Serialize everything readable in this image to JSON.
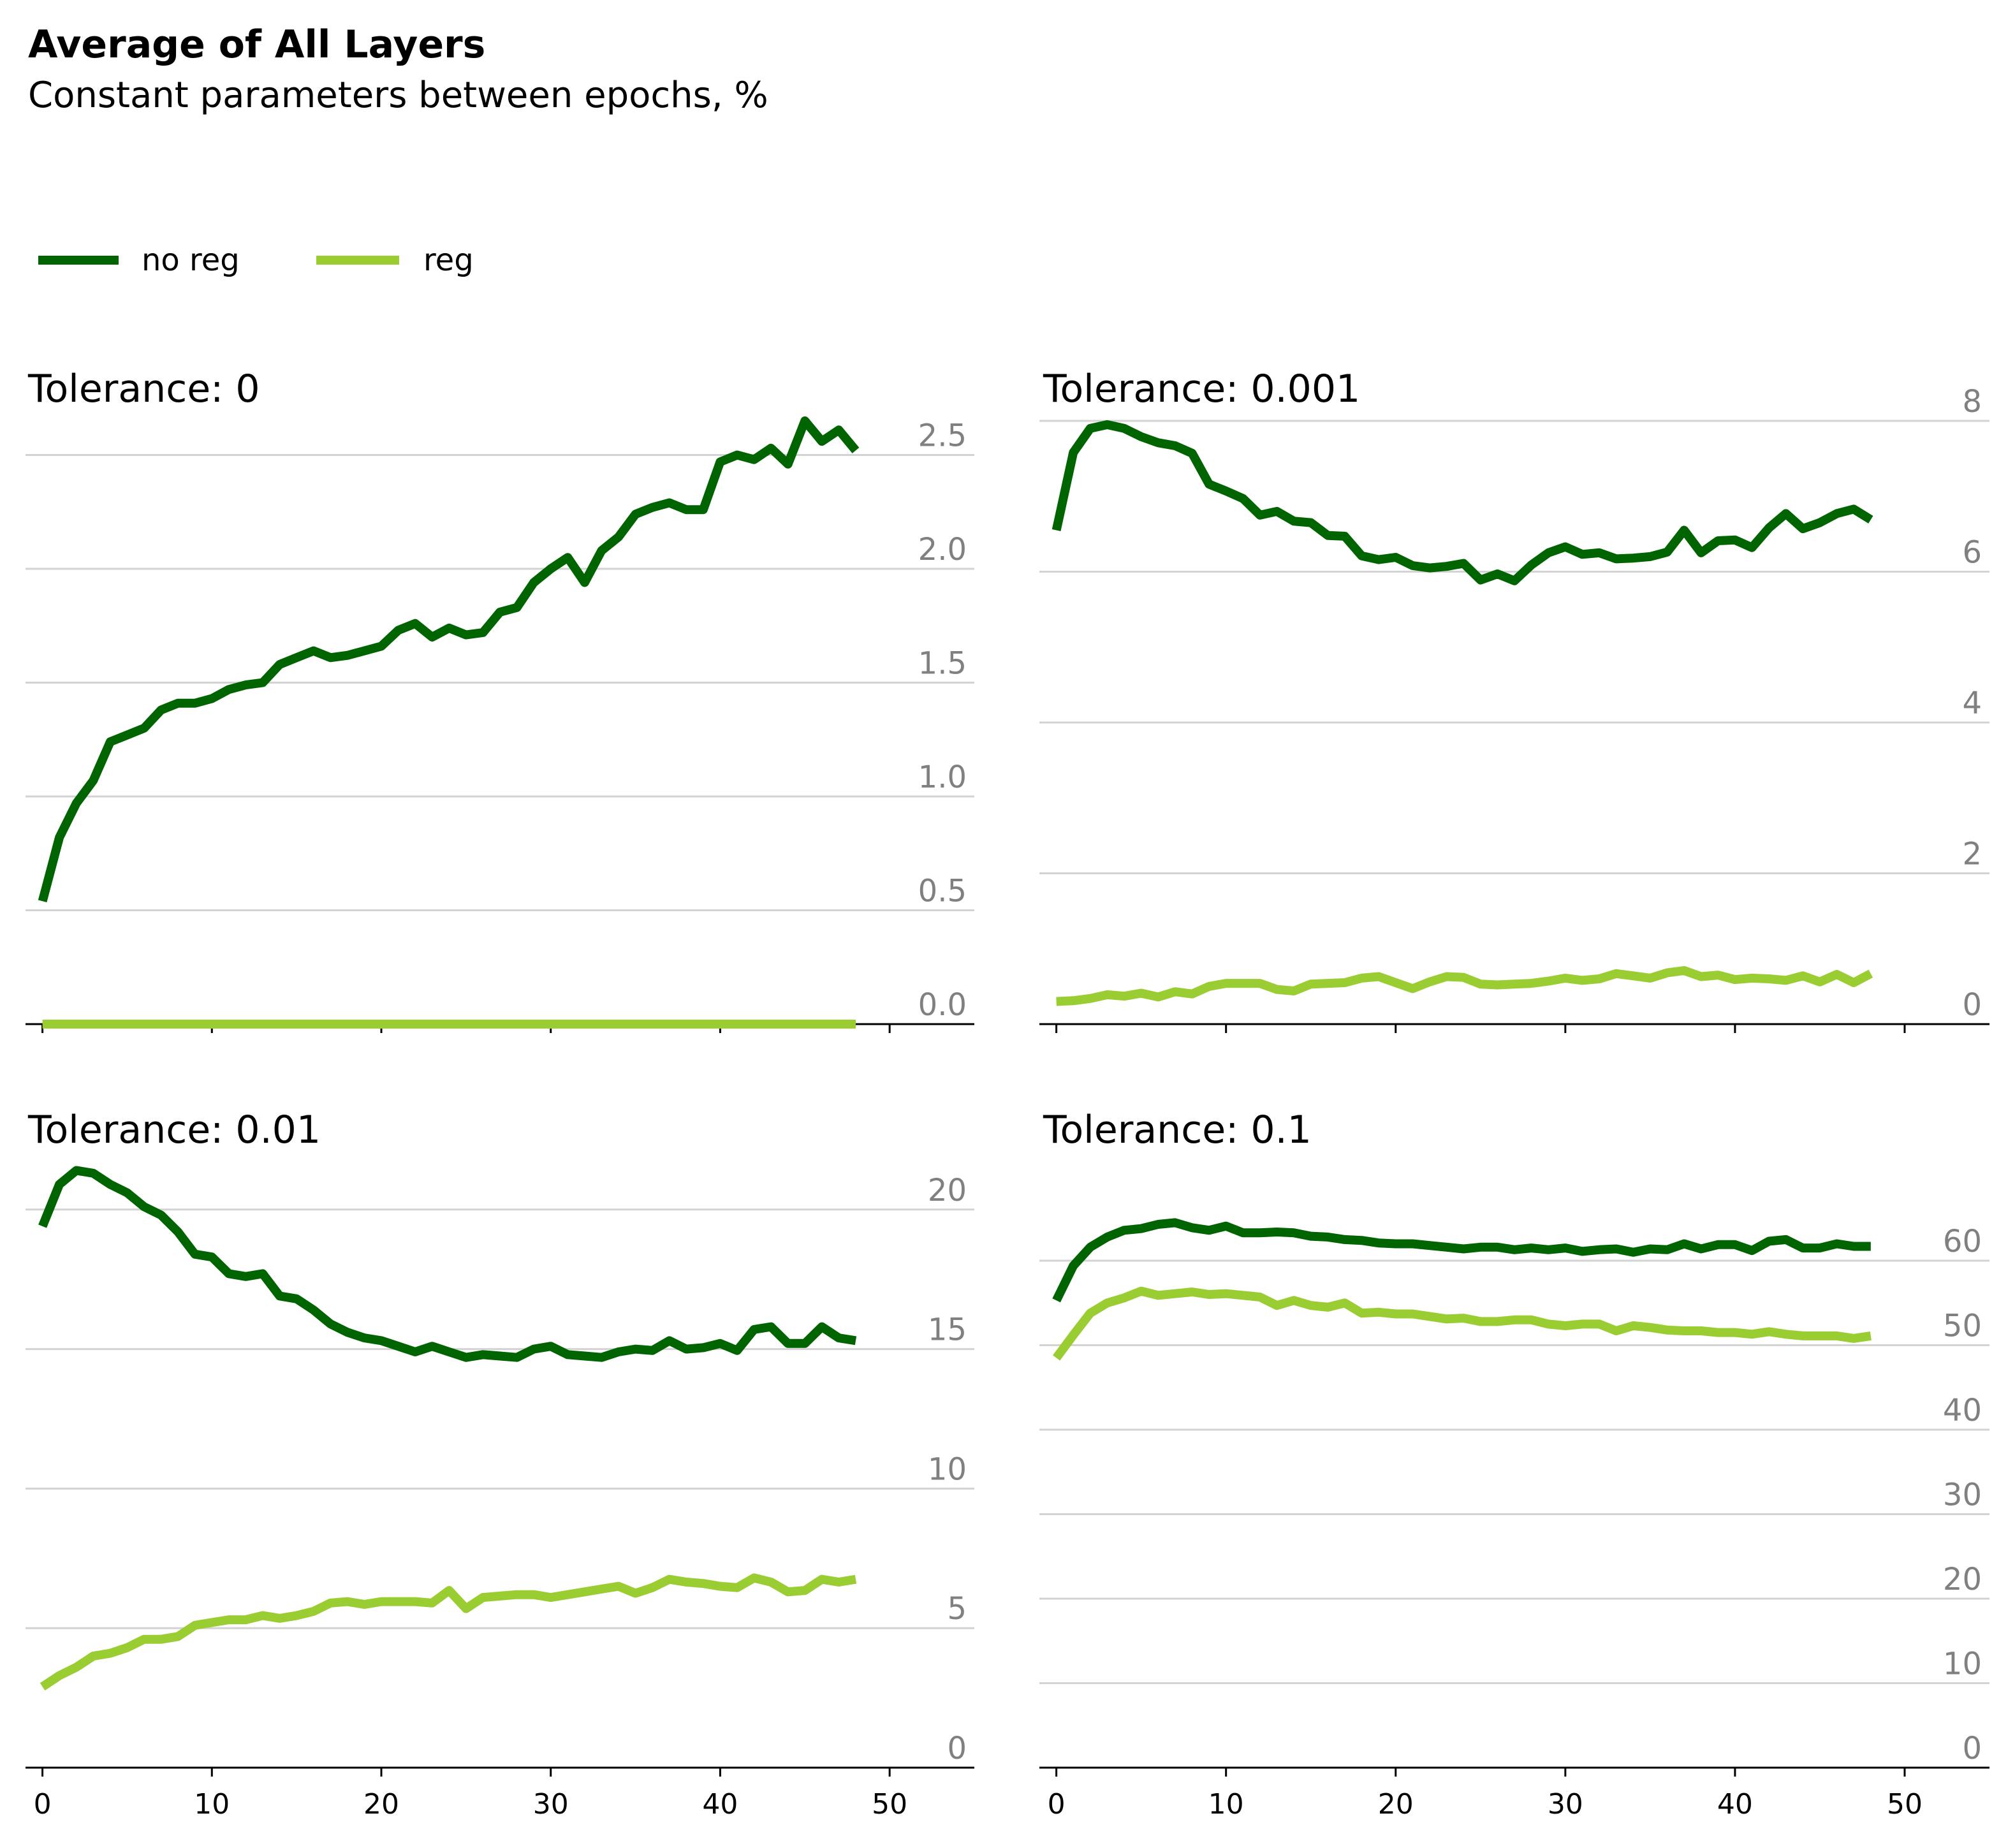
{
  "title": "Average of All Layers",
  "subtitle": "Constant parameters between epochs, %",
  "colors": {
    "no_reg": "#006400",
    "reg": "#9acd32",
    "grid": "#d3d3d3",
    "tick_label": "#808080"
  },
  "legend": [
    {
      "name": "no reg",
      "color": "#006400"
    },
    {
      "name": "reg",
      "color": "#9acd32"
    }
  ],
  "chart_data": [
    {
      "type": "line",
      "title": "Tolerance: 0",
      "xlabel": "",
      "ylabel": "",
      "xlim": [
        -1,
        55
      ],
      "ylim": [
        0,
        2.65
      ],
      "xticks": [
        0,
        10,
        20,
        30,
        40,
        50
      ],
      "yticks": [
        0.0,
        0.5,
        1.0,
        1.5,
        2.0,
        2.5
      ],
      "ytick_labels": [
        "0.0",
        "0.5",
        "1.0",
        "1.5",
        "2.0",
        "2.5"
      ],
      "series": [
        {
          "name": "no reg",
          "values": [
            0.54,
            0.82,
            0.97,
            1.07,
            1.24,
            1.27,
            1.3,
            1.38,
            1.41,
            1.41,
            1.43,
            1.47,
            1.49,
            1.5,
            1.58,
            1.61,
            1.64,
            1.61,
            1.62,
            1.64,
            1.66,
            1.73,
            1.76,
            1.7,
            1.74,
            1.71,
            1.72,
            1.81,
            1.83,
            1.94,
            2.0,
            2.05,
            1.94,
            2.08,
            2.14,
            2.24,
            2.27,
            2.29,
            2.26,
            2.26,
            2.47,
            2.5,
            2.48,
            2.53,
            2.46,
            2.65,
            2.56,
            2.61,
            2.52
          ]
        },
        {
          "name": "reg",
          "values": [
            0,
            0,
            0,
            0,
            0,
            0,
            0,
            0,
            0,
            0,
            0,
            0,
            0,
            0,
            0,
            0,
            0,
            0,
            0,
            0,
            0,
            0,
            0,
            0,
            0,
            0,
            0,
            0,
            0,
            0,
            0,
            0,
            0,
            0,
            0,
            0,
            0,
            0,
            0,
            0,
            0,
            0,
            0,
            0,
            0,
            0,
            0,
            0,
            0
          ]
        }
      ]
    },
    {
      "type": "line",
      "title": "Tolerance: 0.001",
      "xlabel": "",
      "ylabel": "",
      "xlim": [
        -1,
        55
      ],
      "ylim": [
        0,
        8
      ],
      "xticks": [
        0,
        10,
        20,
        30,
        40,
        50
      ],
      "yticks": [
        0,
        2,
        4,
        6,
        8
      ],
      "ytick_labels": [
        "0",
        "2",
        "4",
        "6",
        "8"
      ],
      "series": [
        {
          "name": "no reg",
          "values": [
            6.55,
            7.58,
            7.9,
            7.95,
            7.9,
            7.79,
            7.71,
            7.67,
            7.57,
            7.16,
            7.07,
            6.97,
            6.75,
            6.8,
            6.67,
            6.65,
            6.48,
            6.47,
            6.21,
            6.16,
            6.19,
            6.08,
            6.05,
            6.07,
            6.11,
            5.89,
            5.97,
            5.88,
            6.09,
            6.25,
            6.33,
            6.23,
            6.25,
            6.17,
            6.18,
            6.2,
            6.26,
            6.55,
            6.25,
            6.41,
            6.42,
            6.32,
            6.58,
            6.77,
            6.57,
            6.65,
            6.77,
            6.83,
            6.69
          ]
        },
        {
          "name": "reg",
          "values": [
            0.3,
            0.31,
            0.34,
            0.39,
            0.37,
            0.41,
            0.36,
            0.43,
            0.4,
            0.5,
            0.54,
            0.54,
            0.54,
            0.46,
            0.44,
            0.53,
            0.54,
            0.55,
            0.61,
            0.63,
            0.55,
            0.47,
            0.56,
            0.63,
            0.62,
            0.53,
            0.52,
            0.53,
            0.54,
            0.57,
            0.61,
            0.58,
            0.6,
            0.67,
            0.64,
            0.61,
            0.68,
            0.71,
            0.63,
            0.65,
            0.59,
            0.61,
            0.6,
            0.58,
            0.64,
            0.56,
            0.66,
            0.55,
            0.67
          ]
        }
      ]
    },
    {
      "type": "line",
      "title": "Tolerance: 0.01",
      "xlabel": "",
      "ylabel": "",
      "xlim": [
        -1,
        55
      ],
      "ylim": [
        0,
        21.8
      ],
      "xticks": [
        0,
        10,
        20,
        30,
        40,
        50
      ],
      "yticks": [
        0,
        5,
        10,
        15,
        20
      ],
      "ytick_labels": [
        "0",
        "5",
        "10",
        "15",
        "20"
      ],
      "series": [
        {
          "name": "no reg",
          "values": [
            19.4,
            20.9,
            21.4,
            21.3,
            20.9,
            20.6,
            20.1,
            19.8,
            19.2,
            18.4,
            18.3,
            17.7,
            17.6,
            17.7,
            16.9,
            16.8,
            16.4,
            15.9,
            15.6,
            15.4,
            15.3,
            15.1,
            14.9,
            15.1,
            14.9,
            14.7,
            14.8,
            14.75,
            14.7,
            15.0,
            15.1,
            14.8,
            14.75,
            14.7,
            14.9,
            15.0,
            14.95,
            15.3,
            15.0,
            15.05,
            15.2,
            14.95,
            15.7,
            15.8,
            15.2,
            15.2,
            15.8,
            15.4,
            15.3
          ]
        },
        {
          "name": "reg",
          "values": [
            2.9,
            3.3,
            3.6,
            4.0,
            4.1,
            4.3,
            4.6,
            4.6,
            4.7,
            5.1,
            5.2,
            5.3,
            5.3,
            5.45,
            5.35,
            5.45,
            5.6,
            5.9,
            5.95,
            5.85,
            5.95,
            5.95,
            5.95,
            5.9,
            6.35,
            5.7,
            6.1,
            6.15,
            6.2,
            6.2,
            6.1,
            6.2,
            6.3,
            6.4,
            6.5,
            6.25,
            6.45,
            6.75,
            6.65,
            6.6,
            6.5,
            6.45,
            6.8,
            6.65,
            6.3,
            6.35,
            6.75,
            6.65,
            6.75
          ]
        }
      ]
    },
    {
      "type": "line",
      "title": "Tolerance: 0.1",
      "xlabel": "",
      "ylabel": "",
      "xlim": [
        -1,
        55
      ],
      "ylim": [
        0,
        72
      ],
      "xticks": [
        0,
        10,
        20,
        30,
        40,
        50
      ],
      "yticks": [
        0,
        10,
        20,
        30,
        40,
        50,
        60
      ],
      "ytick_labels": [
        "0",
        "10",
        "20",
        "30",
        "40",
        "50",
        "60"
      ],
      "series": [
        {
          "name": "no reg",
          "values": [
            55.3,
            59.4,
            61.6,
            62.8,
            63.6,
            63.8,
            64.3,
            64.5,
            63.9,
            63.6,
            64.1,
            63.3,
            63.3,
            63.4,
            63.3,
            62.9,
            62.8,
            62.5,
            62.4,
            62.1,
            62.0,
            62.0,
            61.8,
            61.6,
            61.4,
            61.6,
            61.6,
            61.3,
            61.5,
            61.3,
            61.5,
            61.1,
            61.3,
            61.4,
            61.0,
            61.4,
            61.3,
            62.0,
            61.4,
            61.9,
            61.9,
            61.2,
            62.3,
            62.5,
            61.5,
            61.5,
            62.0,
            61.7,
            61.7
          ]
        },
        {
          "name": "reg",
          "values": [
            48.5,
            51.2,
            53.8,
            55.0,
            55.6,
            56.4,
            55.9,
            56.1,
            56.3,
            56.0,
            56.1,
            55.9,
            55.7,
            54.7,
            55.3,
            54.7,
            54.5,
            55.0,
            53.8,
            53.9,
            53.7,
            53.7,
            53.4,
            53.1,
            53.2,
            52.8,
            52.8,
            53.0,
            53.0,
            52.5,
            52.3,
            52.5,
            52.5,
            51.7,
            52.3,
            52.1,
            51.8,
            51.7,
            51.7,
            51.5,
            51.5,
            51.3,
            51.6,
            51.3,
            51.1,
            51.1,
            51.1,
            50.8,
            51.1
          ]
        }
      ]
    }
  ]
}
